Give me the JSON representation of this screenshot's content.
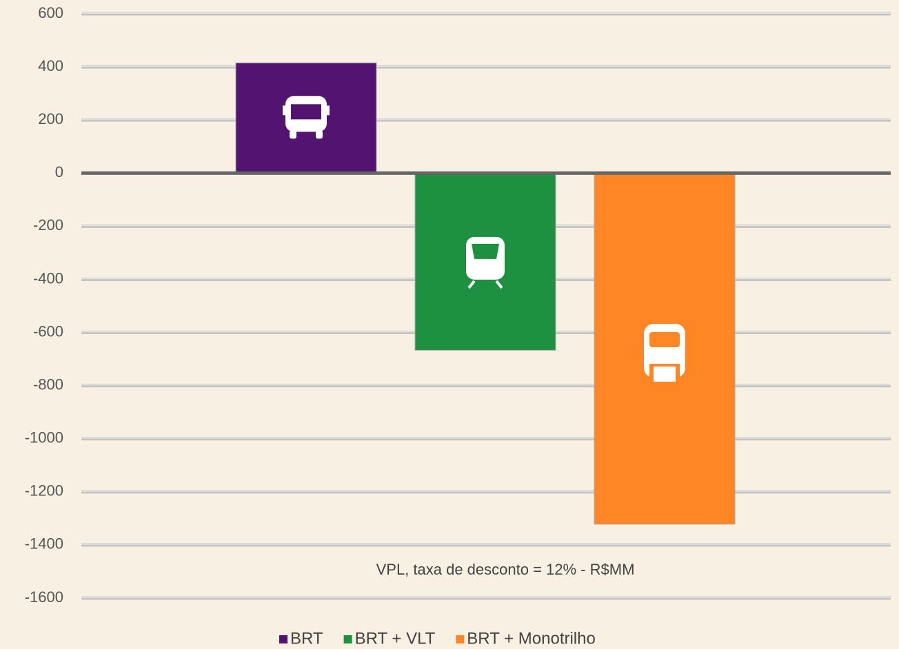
{
  "chart_data": {
    "type": "bar",
    "annotation": "VPL, taxa de desconto = 12% - R$MM",
    "categories": [
      null
    ],
    "series": [
      {
        "name": "BRT",
        "color": "#521470",
        "values": [
          415
        ]
      },
      {
        "name": "BRT + VLT",
        "color": "#1e9140",
        "values": [
          -667
        ]
      },
      {
        "name": "BRT + Monotrilho",
        "color": "#ff8625",
        "values": [
          -1322
        ]
      }
    ],
    "ylim": [
      -1600,
      600
    ],
    "yticks": [
      -1600,
      -1400,
      -1200,
      -1000,
      -800,
      -600,
      -400,
      -200,
      0,
      200,
      400,
      600
    ],
    "grid": true,
    "legend": "bottom"
  }
}
